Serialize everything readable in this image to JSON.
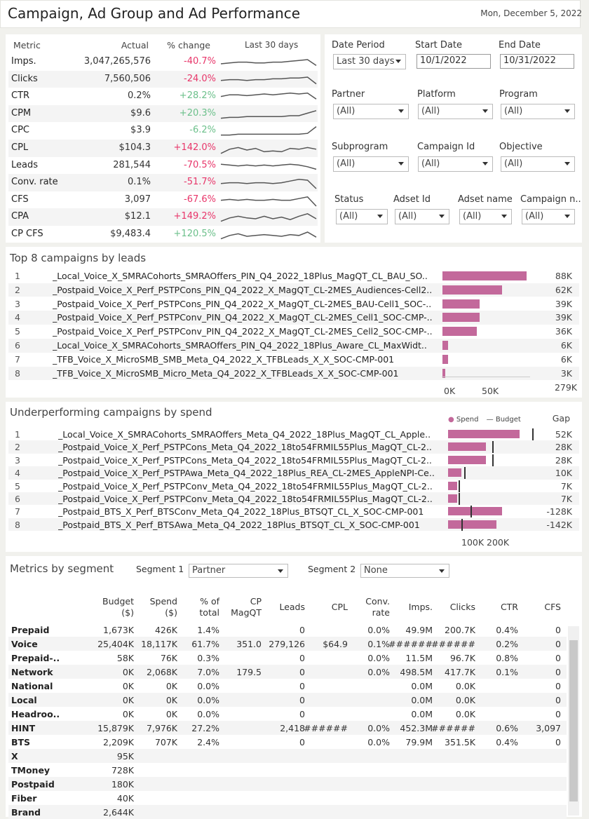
{
  "header": {
    "title": "Campaign, Ad Group and Ad Performance",
    "date": "Mon, December 5, 2022"
  },
  "kpi": {
    "headers": {
      "metric": "Metric",
      "actual": "Actual",
      "change": "% change",
      "trend": "Last 30 days"
    },
    "rows": [
      {
        "name": "Imps.",
        "actual": "3,047,265,576",
        "change": "-40.7%",
        "dir": "neg",
        "spark": [
          10,
          9,
          8,
          8,
          9,
          9,
          8,
          8,
          7,
          6,
          5,
          12
        ]
      },
      {
        "name": "Clicks",
        "actual": "7,560,506",
        "change": "-24.0%",
        "dir": "neg",
        "spark": [
          9,
          8,
          8,
          9,
          8,
          8,
          7,
          7,
          6,
          6,
          5,
          13
        ]
      },
      {
        "name": "CTR",
        "actual": "0.2%",
        "change": "+28.2%",
        "dir": "pos",
        "spark": [
          8,
          6,
          6,
          7,
          6,
          5,
          6,
          5,
          4,
          5,
          4,
          11
        ]
      },
      {
        "name": "CPM",
        "actual": "$9.6",
        "change": "+20.3%",
        "dir": "pos",
        "spark": [
          13,
          12,
          12,
          11,
          11,
          11,
          11,
          11,
          10,
          10,
          7,
          4
        ]
      },
      {
        "name": "CPC",
        "actual": "$3.9",
        "change": "-6.2%",
        "dir": "pos",
        "spark": [
          13,
          13,
          12,
          12,
          12,
          12,
          12,
          12,
          12,
          12,
          11,
          3
        ]
      },
      {
        "name": "CPL",
        "actual": "$104.3",
        "change": "+142.0%",
        "dir": "neg",
        "spark": [
          14,
          9,
          7,
          10,
          8,
          12,
          11,
          12,
          8,
          9,
          7,
          9
        ]
      },
      {
        "name": "Leads",
        "actual": "281,544",
        "change": "-70.5%",
        "dir": "neg",
        "spark": [
          6,
          7,
          8,
          7,
          8,
          7,
          8,
          7,
          6,
          7,
          9,
          12
        ]
      },
      {
        "name": "Conv. rate",
        "actual": "0.1%",
        "change": "-51.7%",
        "dir": "neg",
        "spark": [
          9,
          8,
          8,
          9,
          8,
          8,
          9,
          8,
          6,
          4,
          5,
          15
        ]
      },
      {
        "name": "CFS",
        "actual": "3,097",
        "change": "-67.6%",
        "dir": "neg",
        "spark": [
          8,
          7,
          8,
          7,
          8,
          8,
          7,
          8,
          8,
          6,
          4,
          15
        ]
      },
      {
        "name": "CPA",
        "actual": "$12.1",
        "change": "+149.2%",
        "dir": "neg",
        "spark": [
          13,
          9,
          7,
          9,
          10,
          7,
          10,
          8,
          11,
          7,
          4,
          10
        ]
      },
      {
        "name": "CP CFS",
        "actual": "$9,483.4",
        "change": "+120.5%",
        "dir": "pos",
        "spark": [
          13,
          9,
          7,
          10,
          9,
          8,
          9,
          10,
          8,
          9,
          5,
          11
        ]
      }
    ]
  },
  "filters": {
    "date_period": {
      "label": "Date Period",
      "value": "Last 30 days"
    },
    "start_date": {
      "label": "Start Date",
      "value": "10/1/2022"
    },
    "end_date": {
      "label": "End Date",
      "value": "10/31/2022"
    },
    "partner": {
      "label": "Partner",
      "value": "(All)"
    },
    "platform": {
      "label": "Platform",
      "value": "(All)"
    },
    "program": {
      "label": "Program",
      "value": "(All)"
    },
    "subprogram": {
      "label": "Subprogram",
      "value": "(All)"
    },
    "campaign_id": {
      "label": "Campaign Id",
      "value": "(All)"
    },
    "objective": {
      "label": "Objective",
      "value": "(All)"
    },
    "status": {
      "label": "Status",
      "value": "(All)"
    },
    "adset_id": {
      "label": "Adset Id",
      "value": "(All)"
    },
    "adset_name": {
      "label": "Adset name",
      "value": "(All)"
    },
    "campaign_name": {
      "label": "Campaign n..",
      "value": "(All)"
    }
  },
  "top_campaigns": {
    "title": "Top 8 campaigns by leads",
    "rows": [
      {
        "rank": "1",
        "name": "_Local_Voice_X_SMRACohorts_SMRAOffers_PIN_Q4_2022_18Plus_MagQT_CL_BAU_SO..",
        "value_label": "88K",
        "value": 88
      },
      {
        "rank": "2",
        "name": "_Postpaid_Voice_X_Perf_PSTPCons_PIN_Q4_2022_X_MagQT_CL-2MES_Audiences-Cell2..",
        "value_label": "62K",
        "value": 62
      },
      {
        "rank": "3",
        "name": "_Postpaid_Voice_X_Perf_PSTPCons_PIN_Q4_2022_X_MagQT_CL-2MES_BAU-Cell1_SOC-..",
        "value_label": "39K",
        "value": 39
      },
      {
        "rank": "4",
        "name": "_Postpaid_Voice_X_Perf_PSTPConv_PIN_Q4_2022_X_MagQT_CL-2MES_Cell1_SOC-CMP-..",
        "value_label": "39K",
        "value": 39
      },
      {
        "rank": "5",
        "name": "_Postpaid_Voice_X_Perf_PSTPConv_PIN_Q4_2022_X_MagQT_CL-2MES_Cell2_SOC-CMP-..",
        "value_label": "36K",
        "value": 36
      },
      {
        "rank": "6",
        "name": "_Local_Voice_X_SMRACohorts_SMRAOffers_PIN_Q4_2022_18Plus_Aware_CL_MaxWidt..",
        "value_label": "6K",
        "value": 6
      },
      {
        "rank": "7",
        "name": "_TFB_Voice_X_MicroSMB_SMB_Meta_Q4_2022_X_TFBLeads_X_X_SOC-CMP-001",
        "value_label": "6K",
        "value": 6
      },
      {
        "rank": "8",
        "name": "_TFB_Voice_X_MicroSMB_Micro_Meta_Q4_2022_X_TFBLeads_X_X_SOC-CMP-001",
        "value_label": "3K",
        "value": 3
      }
    ],
    "axis": [
      "0K",
      "50K"
    ],
    "total": "279K"
  },
  "underperforming": {
    "title": "Underperforming campaigns by spend",
    "legend": {
      "spend": "Spend",
      "budget": "Budget"
    },
    "gap_header": "Gap",
    "rows": [
      {
        "rank": "1",
        "name": "_Local_Voice_X_SMRACohorts_SMRAOffers_Meta_Q4_2022_18Plus_MagQT_CL_Apple..",
        "spend": 290,
        "budget": 342,
        "gap": "52K"
      },
      {
        "rank": "2",
        "name": "_Postpaid_Voice_X_Perf_PSTPCons_Meta_Q4_2022_18to54FRMIL55Plus_MagQT_CL-2..",
        "spend": 153,
        "budget": 181,
        "gap": "28K"
      },
      {
        "rank": "3",
        "name": "_Postpaid_Voice_X_Perf_PSTPCons_Meta_Q4_2022_18to54FRMIL55Plus_MagQT_CL-2..",
        "spend": 153,
        "budget": 181,
        "gap": "28K"
      },
      {
        "rank": "4",
        "name": "_Postpaid_Voice_X_Perf_PSTPAwa_Meta_Q4_2022_18Plus_REA_CL-2MES_AppleNPI-Ce..",
        "spend": 55,
        "budget": 65,
        "gap": "10K"
      },
      {
        "rank": "5",
        "name": "_Postpaid_Voice_X_Perf_PSTPConv_Meta_Q4_2022_18to54FRMIL55Plus_MagQT_CL-2..",
        "spend": 36,
        "budget": 43,
        "gap": "7K"
      },
      {
        "rank": "6",
        "name": "_Postpaid_Voice_X_Perf_PSTPConv_Meta_Q4_2022_18to54FRMIL55Plus_MagQT_CL-2..",
        "spend": 36,
        "budget": 43,
        "gap": "7K"
      },
      {
        "rank": "7",
        "name": "_Postpaid_BTS_X_Perf_BTSConv_Meta_Q4_2022_18Plus_BTSQT_CL_X_SOC-CMP-001",
        "spend": 220,
        "budget": 92,
        "gap": "-128K"
      },
      {
        "rank": "8",
        "name": "_Postpaid_BTS_X_Perf_BTSAwa_Meta_Q4_2022_18Plus_BTSQT_CL_X_SOC-CMP-001",
        "spend": 196,
        "budget": 54,
        "gap": "-142K"
      }
    ],
    "axis": [
      "100K",
      "200K"
    ]
  },
  "segments": {
    "title": "Metrics by segment",
    "segment1": {
      "label": "Segment 1",
      "value": "Partner"
    },
    "segment2": {
      "label": "Segment 2",
      "value": "None"
    },
    "columns": [
      "Budget ($)",
      "Spend ($)",
      "% of total",
      "CP MagQT",
      "Leads",
      "CPL",
      "Conv. rate",
      "Imps.",
      "Clicks",
      "CTR",
      "CFS"
    ],
    "rows": [
      {
        "name": "Prepaid",
        "cells": [
          "1,673K",
          "426K",
          "1.4%",
          "",
          "0",
          "",
          "0.0%",
          "49.9M",
          "200.7K",
          "0.4%",
          "0"
        ]
      },
      {
        "name": "Voice",
        "cells": [
          "25,404K",
          "18,117K",
          "61.7%",
          "351.0",
          "279,126",
          "$64.9",
          "0.1%",
          "######",
          "######",
          "0.2%",
          "0"
        ]
      },
      {
        "name": "Prepaid-..",
        "cells": [
          "58K",
          "76K",
          "0.3%",
          "",
          "0",
          "",
          "0.0%",
          "11.5M",
          "96.7K",
          "0.8%",
          "0"
        ]
      },
      {
        "name": "Network",
        "cells": [
          "0K",
          "2,068K",
          "7.0%",
          "179.5",
          "0",
          "",
          "0.0%",
          "498.5M",
          "417.7K",
          "0.1%",
          "0"
        ]
      },
      {
        "name": "National",
        "cells": [
          "0K",
          "0K",
          "0.0%",
          "",
          "0",
          "",
          "",
          "0.0M",
          "0.0K",
          "",
          "0"
        ]
      },
      {
        "name": "Local",
        "cells": [
          "0K",
          "0K",
          "0.0%",
          "",
          "0",
          "",
          "",
          "0.0M",
          "0.0K",
          "",
          "0"
        ]
      },
      {
        "name": "Headroo..",
        "cells": [
          "0K",
          "0K",
          "0.0%",
          "",
          "0",
          "",
          "",
          "0.0M",
          "0.0K",
          "",
          "0"
        ]
      },
      {
        "name": "HINT",
        "cells": [
          "15,879K",
          "7,976K",
          "27.2%",
          "",
          "2,418",
          "######",
          "0.0%",
          "452.3M",
          "######",
          "0.6%",
          "3,097"
        ]
      },
      {
        "name": "BTS",
        "cells": [
          "2,209K",
          "707K",
          "2.4%",
          "",
          "0",
          "",
          "0.0%",
          "79.9M",
          "351.5K",
          "0.4%",
          "0"
        ]
      },
      {
        "name": "X",
        "cells": [
          "95K",
          "",
          "",
          "",
          "",
          "",
          "",
          "",
          "",
          "",
          ""
        ]
      },
      {
        "name": "TMoney",
        "cells": [
          "728K",
          "",
          "",
          "",
          "",
          "",
          "",
          "",
          "",
          "",
          ""
        ]
      },
      {
        "name": "Postpaid",
        "cells": [
          "180K",
          "",
          "",
          "",
          "",
          "",
          "",
          "",
          "",
          "",
          ""
        ]
      },
      {
        "name": "Fiber",
        "cells": [
          "40K",
          "",
          "",
          "",
          "",
          "",
          "",
          "",
          "",
          "",
          ""
        ]
      },
      {
        "name": "Brand",
        "cells": [
          "2,644K",
          "",
          "",
          "",
          "",
          "",
          "",
          "",
          "",
          "",
          ""
        ]
      }
    ]
  },
  "colors": {
    "bar": "#c3699b",
    "negative": "#e8366a",
    "positive": "#6cc08b"
  }
}
